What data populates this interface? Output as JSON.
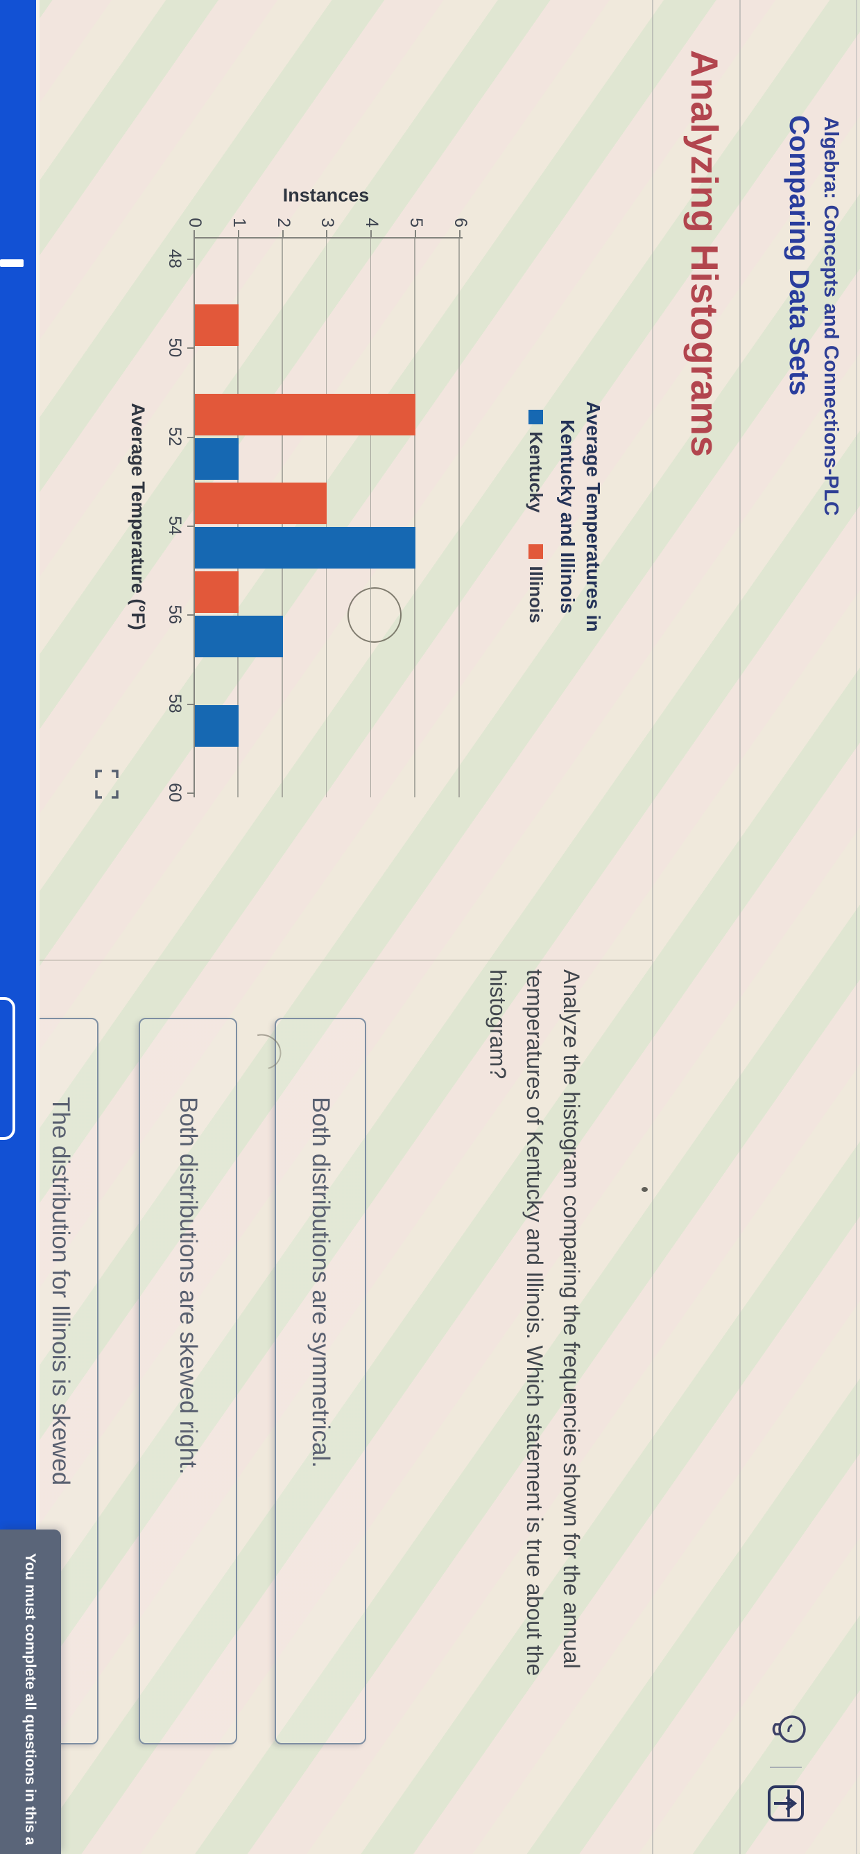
{
  "header": {
    "course_title": "Algebra: Concepts and Connections-PLC",
    "assignment_title": "Comparing Data Sets"
  },
  "icons": {
    "hint": "lightbulb-icon",
    "submit": "submit-box-up-arrow-icon",
    "expand": "fullscreen-brackets-icon"
  },
  "section": {
    "heading": "Analyzing Histograms"
  },
  "question": {
    "text": "Analyze the histogram comparing the frequencies shown for the annual temperatures of Kentucky and Illinois. Which statement is true about the histogram?",
    "lines": [
      "Analyze the histogram comparing the frequencies shown for the annual",
      "temperatures of Kentucky and Illinois. Which statement is true about the",
      "histogram?"
    ]
  },
  "options": [
    {
      "label": "Both distributions are symmetrical."
    },
    {
      "label": "Both distributions are skewed right."
    },
    {
      "label": "The distribution for Illinois is skewed"
    }
  ],
  "toast": {
    "message": "You must complete all questions in this a"
  },
  "chart_data": {
    "type": "bar",
    "subtype": "grouped-histogram",
    "title": "Average Temperatures in Kentucky and Illinois",
    "title_lines": [
      "Average Temperatures in",
      "Kentucky and Illinois"
    ],
    "xlabel": "Average Temperature (°F)",
    "ylabel": "Instances",
    "bin_edges": [
      48,
      50,
      52,
      54,
      56,
      58,
      60
    ],
    "yticks": [
      0,
      1,
      2,
      3,
      4,
      5,
      6
    ],
    "ylim": [
      0,
      6
    ],
    "grid": true,
    "legend_position": "top",
    "series": [
      {
        "name": "Kentucky",
        "color": "#1668b2",
        "values": [
          0,
          0,
          1,
          5,
          2,
          1
        ]
      },
      {
        "name": "Illinois",
        "color": "#e2583a",
        "values": [
          1,
          5,
          3,
          1,
          0,
          0
        ]
      }
    ]
  }
}
